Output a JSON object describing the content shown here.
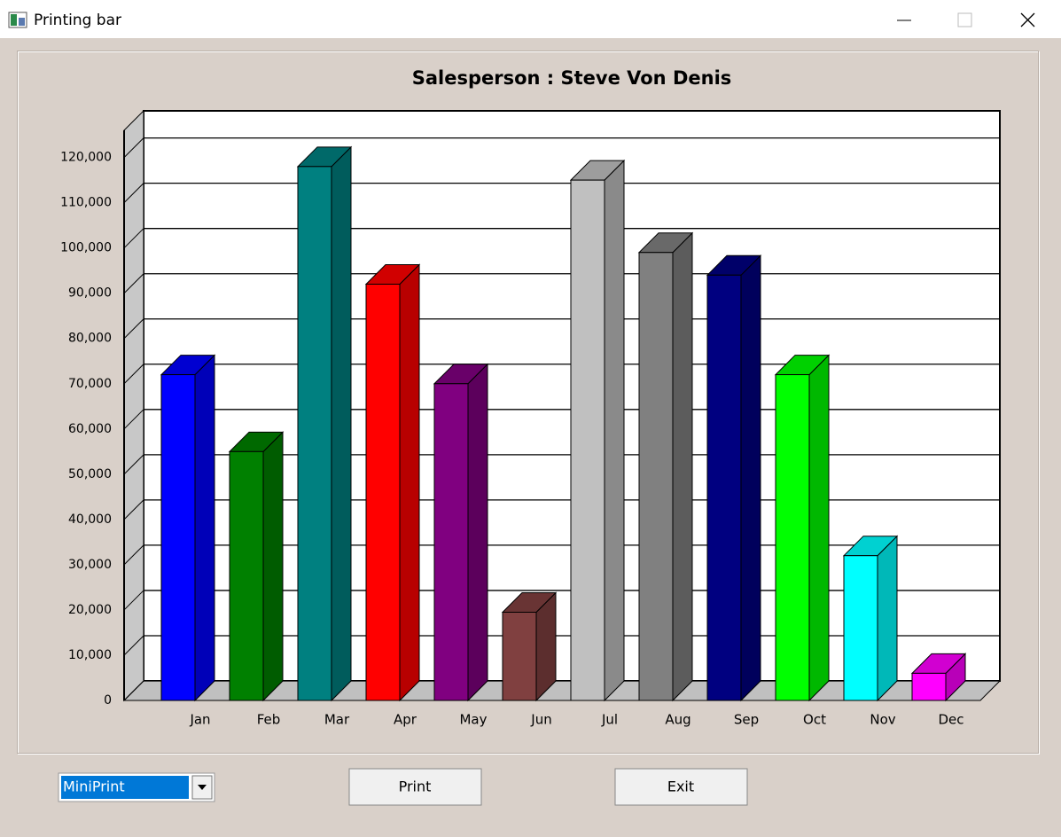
{
  "window": {
    "title": "Printing bar"
  },
  "chart_data": {
    "type": "bar3d",
    "title": "Salesperson : Steve Von Denis",
    "categories": [
      "Jan",
      "Feb",
      "Mar",
      "Apr",
      "May",
      "Jun",
      "Jul",
      "Aug",
      "Sep",
      "Oct",
      "Nov",
      "Dec"
    ],
    "values": [
      72000,
      55000,
      118000,
      92000,
      70000,
      19500,
      115000,
      99000,
      94000,
      72000,
      32000,
      6000
    ],
    "colors": [
      "#0000ff",
      "#008000",
      "#008080",
      "#ff0000",
      "#800080",
      "#804040",
      "#c0c0c0",
      "#808080",
      "#000080",
      "#00ff00",
      "#00ffff",
      "#ff00ff"
    ],
    "ylim": [
      0,
      126000
    ],
    "yticks": [
      0,
      {
        "value": 10000,
        "label": "10,000"
      },
      {
        "value": 20000,
        "label": "20,000"
      },
      {
        "value": 30000,
        "label": "30,000"
      },
      {
        "value": 40000,
        "label": "40,000"
      },
      {
        "value": 50000,
        "label": "50,000"
      },
      {
        "value": 60000,
        "label": "60,000"
      },
      {
        "value": 70000,
        "label": "70,000"
      },
      {
        "value": 80000,
        "label": "80,000"
      },
      {
        "value": 90000,
        "label": "90,000"
      },
      {
        "value": 100000,
        "label": "100,000"
      },
      {
        "value": 110000,
        "label": "110,000"
      },
      {
        "value": 120000,
        "label": "120,000"
      }
    ],
    "grid": true
  },
  "controls": {
    "printer": "MiniPrint",
    "print": "Print",
    "exit": "Exit"
  }
}
